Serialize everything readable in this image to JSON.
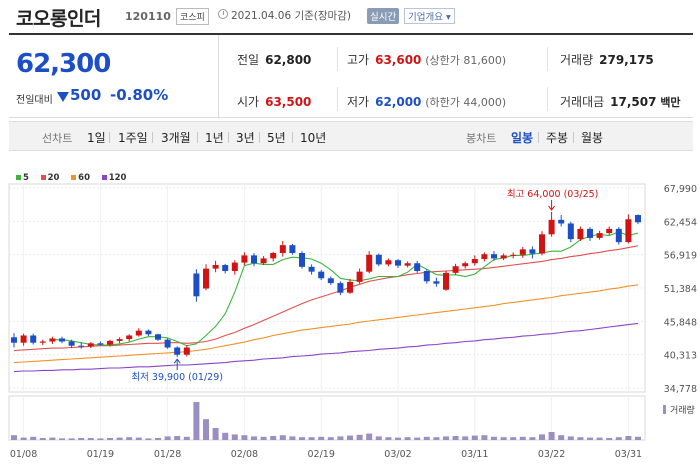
{
  "header": {
    "name": "코오롱인더",
    "code": "120110",
    "market": "코스피",
    "date_text": "2021.04.06 기준(장마감)",
    "realtime_label": "실시간",
    "overview_label": "기업개요 ▾"
  },
  "summary": {
    "price": "62,300",
    "change_label": "전일대비",
    "change": "500",
    "change_pct": "-0.80%",
    "prev_label": "전일",
    "prev_value": "62,800",
    "high_label": "고가",
    "high_value": "63,600",
    "high_sub": "(상한가 81,600)",
    "volume_label": "거래량",
    "volume_value": "279,175",
    "open_label": "시가",
    "open_value": "63,500",
    "low_label": "저가",
    "low_value": "62,000",
    "low_sub": "(하한가 44,000)",
    "amount_label": "거래대금",
    "amount_value": "17,507",
    "amount_unit": "백만"
  },
  "tabs": {
    "line_label": "선차트",
    "periods": [
      "1일",
      "1주일",
      "3개월",
      "1년",
      "3년",
      "5년",
      "10년"
    ],
    "candle_label": "봉차트",
    "candle_periods": [
      "일봉",
      "주봉",
      "월봉"
    ],
    "selected_candle": "일봉"
  },
  "colors": {
    "up": "#d01414",
    "down": "#1c4fc6",
    "ma5": "#3db53d",
    "ma20": "#e05050",
    "ma60": "#f0922a",
    "ma120": "#8b45c8",
    "volume": "#9a8fc2"
  },
  "chart_data": {
    "type": "candlestick",
    "legend": [
      "5",
      "20",
      "60",
      "120"
    ],
    "ylim": [
      34778,
      67990
    ],
    "y_ticks": [
      "67,990",
      "62,454",
      "56,919",
      "51,384",
      "45,848",
      "40,313",
      "34,778"
    ],
    "x_ticks": [
      "01/08",
      "01/19",
      "01/28",
      "02/08",
      "02/19",
      "03/02",
      "03/11",
      "03/22",
      "03/31"
    ],
    "x_tick_index": [
      1,
      9,
      16,
      24,
      32,
      40,
      48,
      56,
      64
    ],
    "high_annotation": "최고 64,000 (03/25)",
    "low_annotation": "최저 39,900 (01/29)",
    "volume_label": "거래량",
    "candles": [
      {
        "o": 43200,
        "h": 43900,
        "l": 41500,
        "c": 42300
      },
      {
        "o": 42300,
        "h": 43800,
        "l": 41800,
        "c": 43500
      },
      {
        "o": 43500,
        "h": 43800,
        "l": 42000,
        "c": 42300
      },
      {
        "o": 42300,
        "h": 42800,
        "l": 41900,
        "c": 42500
      },
      {
        "o": 42500,
        "h": 43300,
        "l": 42100,
        "c": 43000
      },
      {
        "o": 43000,
        "h": 43300,
        "l": 42200,
        "c": 42500
      },
      {
        "o": 42500,
        "h": 42800,
        "l": 41400,
        "c": 41800
      },
      {
        "o": 41800,
        "h": 42300,
        "l": 41300,
        "c": 41700
      },
      {
        "o": 41700,
        "h": 42400,
        "l": 41400,
        "c": 42200
      },
      {
        "o": 42200,
        "h": 42500,
        "l": 41800,
        "c": 42000
      },
      {
        "o": 42000,
        "h": 42800,
        "l": 41700,
        "c": 42600
      },
      {
        "o": 42600,
        "h": 43200,
        "l": 42200,
        "c": 42900
      },
      {
        "o": 42900,
        "h": 43700,
        "l": 42500,
        "c": 43500
      },
      {
        "o": 43500,
        "h": 44700,
        "l": 43300,
        "c": 44300
      },
      {
        "o": 44300,
        "h": 44500,
        "l": 43400,
        "c": 43700
      },
      {
        "o": 43700,
        "h": 43800,
        "l": 42600,
        "c": 42800
      },
      {
        "o": 42800,
        "h": 43000,
        "l": 41300,
        "c": 41500
      },
      {
        "o": 41500,
        "h": 41700,
        "l": 39900,
        "c": 40300
      },
      {
        "o": 40300,
        "h": 41900,
        "l": 40000,
        "c": 41500
      },
      {
        "o": 53800,
        "h": 54500,
        "l": 49100,
        "c": 50000
      },
      {
        "o": 51300,
        "h": 55300,
        "l": 51000,
        "c": 54600
      },
      {
        "o": 54600,
        "h": 55900,
        "l": 54000,
        "c": 55200
      },
      {
        "o": 55200,
        "h": 55400,
        "l": 53800,
        "c": 54200
      },
      {
        "o": 54200,
        "h": 56000,
        "l": 53600,
        "c": 55600
      },
      {
        "o": 55600,
        "h": 57300,
        "l": 55200,
        "c": 56800
      },
      {
        "o": 56800,
        "h": 57200,
        "l": 55000,
        "c": 55500
      },
      {
        "o": 55500,
        "h": 56700,
        "l": 55200,
        "c": 56300
      },
      {
        "o": 56300,
        "h": 57400,
        "l": 55800,
        "c": 57200
      },
      {
        "o": 57200,
        "h": 59200,
        "l": 56600,
        "c": 58500
      },
      {
        "o": 58500,
        "h": 58700,
        "l": 56900,
        "c": 57200
      },
      {
        "o": 57200,
        "h": 57500,
        "l": 54600,
        "c": 54900
      },
      {
        "o": 54900,
        "h": 55300,
        "l": 53600,
        "c": 54100
      },
      {
        "o": 54100,
        "h": 54400,
        "l": 52700,
        "c": 53000
      },
      {
        "o": 53000,
        "h": 53300,
        "l": 51900,
        "c": 52200
      },
      {
        "o": 52200,
        "h": 52500,
        "l": 50200,
        "c": 50600
      },
      {
        "o": 50600,
        "h": 52900,
        "l": 50400,
        "c": 52400
      },
      {
        "o": 52400,
        "h": 54600,
        "l": 52100,
        "c": 54100
      },
      {
        "o": 54100,
        "h": 57500,
        "l": 53800,
        "c": 56900
      },
      {
        "o": 56900,
        "h": 57100,
        "l": 55000,
        "c": 55300
      },
      {
        "o": 55300,
        "h": 56300,
        "l": 55000,
        "c": 56000
      },
      {
        "o": 56000,
        "h": 56200,
        "l": 54700,
        "c": 55100
      },
      {
        "o": 55100,
        "h": 55800,
        "l": 54800,
        "c": 55500
      },
      {
        "o": 55500,
        "h": 55900,
        "l": 53900,
        "c": 54200
      },
      {
        "o": 54200,
        "h": 54500,
        "l": 52100,
        "c": 52500
      },
      {
        "o": 52500,
        "h": 53100,
        "l": 51600,
        "c": 52100
      },
      {
        "o": 51100,
        "h": 54200,
        "l": 50900,
        "c": 53900
      },
      {
        "o": 53900,
        "h": 55400,
        "l": 53600,
        "c": 55000
      },
      {
        "o": 55000,
        "h": 55800,
        "l": 54600,
        "c": 55500
      },
      {
        "o": 55500,
        "h": 56800,
        "l": 55100,
        "c": 56200
      },
      {
        "o": 56200,
        "h": 57300,
        "l": 55800,
        "c": 57000
      },
      {
        "o": 57000,
        "h": 57500,
        "l": 55900,
        "c": 56300
      },
      {
        "o": 56300,
        "h": 57100,
        "l": 56000,
        "c": 56800
      },
      {
        "o": 56800,
        "h": 57300,
        "l": 56300,
        "c": 56900
      },
      {
        "o": 56900,
        "h": 58200,
        "l": 56400,
        "c": 57800
      },
      {
        "o": 57800,
        "h": 58300,
        "l": 56300,
        "c": 57100
      },
      {
        "o": 57100,
        "h": 60800,
        "l": 56800,
        "c": 60300
      },
      {
        "o": 60300,
        "h": 64000,
        "l": 59900,
        "c": 62700
      },
      {
        "o": 62700,
        "h": 63500,
        "l": 61600,
        "c": 62100
      },
      {
        "o": 62100,
        "h": 62400,
        "l": 59000,
        "c": 59500
      },
      {
        "o": 59500,
        "h": 61600,
        "l": 59200,
        "c": 61200
      },
      {
        "o": 61200,
        "h": 61500,
        "l": 59200,
        "c": 59700
      },
      {
        "o": 59700,
        "h": 60900,
        "l": 59400,
        "c": 60500
      },
      {
        "o": 60500,
        "h": 61600,
        "l": 60200,
        "c": 61200
      },
      {
        "o": 61200,
        "h": 61500,
        "l": 58600,
        "c": 59000
      },
      {
        "o": 59000,
        "h": 63600,
        "l": 58800,
        "c": 62800
      },
      {
        "o": 63500,
        "h": 63600,
        "l": 62000,
        "c": 62300
      }
    ],
    "volumes": [
      12,
      6,
      8,
      5,
      6,
      4,
      4,
      5,
      5,
      4,
      5,
      6,
      7,
      6,
      4,
      5,
      9,
      10,
      8,
      95,
      52,
      30,
      18,
      14,
      12,
      9,
      8,
      10,
      12,
      9,
      7,
      7,
      8,
      7,
      9,
      11,
      13,
      16,
      9,
      7,
      6,
      7,
      6,
      8,
      7,
      9,
      10,
      9,
      11,
      12,
      8,
      7,
      7,
      8,
      7,
      14,
      20,
      12,
      9,
      7,
      6,
      6,
      5,
      7,
      10,
      8
    ],
    "ma5": [
      null,
      null,
      null,
      null,
      42800,
      42800,
      42600,
      42300,
      42000,
      41900,
      41900,
      42100,
      42400,
      42900,
      43300,
      43300,
      43100,
      42500,
      41800,
      42100,
      43500,
      45000,
      47100,
      50700,
      55100,
      55500,
      55300,
      55300,
      56100,
      56500,
      56400,
      56200,
      55500,
      54400,
      53000,
      52700,
      52600,
      52900,
      53300,
      53300,
      53300,
      54000,
      55300,
      54500,
      53600,
      53500,
      53600,
      53300,
      53700,
      54900,
      56100,
      56400,
      56800,
      56800,
      57000,
      57200,
      57500,
      57500,
      58200,
      59400,
      60000,
      60300,
      60100,
      60700,
      60100,
      60500
    ],
    "ma20": [
      41000,
      41100,
      41200,
      41300,
      41400,
      41400,
      41500,
      41600,
      41700,
      41800,
      41800,
      41900,
      42000,
      42100,
      42200,
      42200,
      42300,
      42300,
      42200,
      42300,
      42500,
      42900,
      43500,
      44000,
      44700,
      45300,
      46000,
      46700,
      47400,
      48100,
      48800,
      49400,
      49900,
      50400,
      50900,
      51500,
      52000,
      52500,
      52800,
      53100,
      53300,
      53600,
      53800,
      54000,
      54100,
      54200,
      54300,
      54400,
      54500,
      54600,
      54800,
      55000,
      55200,
      55400,
      55600,
      55800,
      56100,
      56300,
      56600,
      56800,
      57100,
      57300,
      57600,
      57800,
      58100,
      58400
    ],
    "ma60": [
      39000,
      39100,
      39200,
      39300,
      39400,
      39500,
      39600,
      39700,
      39800,
      39900,
      40000,
      40100,
      40200,
      40300,
      40400,
      40500,
      40600,
      40700,
      40800,
      41000,
      41200,
      41500,
      41800,
      42100,
      42400,
      42800,
      43100,
      43500,
      43800,
      44100,
      44400,
      44600,
      44800,
      45000,
      45200,
      45400,
      45700,
      45900,
      46100,
      46300,
      46500,
      46700,
      46900,
      47100,
      47300,
      47500,
      47700,
      47900,
      48100,
      48300,
      48500,
      48800,
      49000,
      49200,
      49400,
      49600,
      49800,
      50100,
      50300,
      50500,
      50700,
      50900,
      51200,
      51400,
      51700,
      51900
    ],
    "ma120": [
      37500,
      37600,
      37600,
      37700,
      37700,
      37800,
      37800,
      37900,
      37900,
      38000,
      38100,
      38100,
      38200,
      38300,
      38300,
      38400,
      38500,
      38600,
      38600,
      38700,
      38800,
      38900,
      39000,
      39200,
      39300,
      39400,
      39600,
      39700,
      39800,
      40000,
      40100,
      40200,
      40400,
      40500,
      40600,
      40800,
      40900,
      41000,
      41200,
      41300,
      41400,
      41600,
      41700,
      41900,
      42000,
      42200,
      42300,
      42500,
      42600,
      42800,
      42900,
      43100,
      43200,
      43400,
      43500,
      43700,
      43800,
      44000,
      44200,
      44300,
      44500,
      44700,
      44900,
      45100,
      45300,
      45500
    ]
  }
}
